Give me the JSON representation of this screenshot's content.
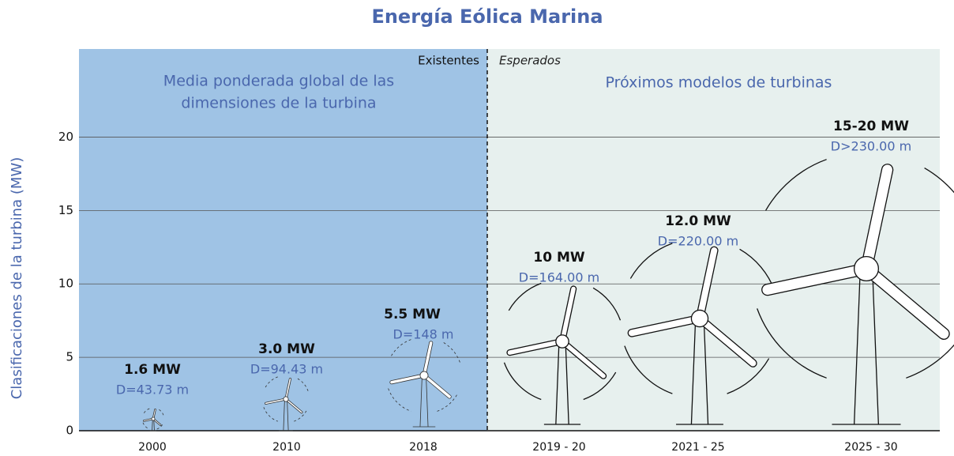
{
  "chart_data": {
    "type": "turbines",
    "title": "Energía Eólica Marina",
    "ylabel": "Clasificaciones de la turbina (MW)",
    "ylim": [
      0,
      26
    ],
    "yticks": [
      0,
      5,
      10,
      15,
      20
    ],
    "grid": true,
    "categories": [
      "2000",
      "2010",
      "2018",
      "2019 - 20",
      "2021 - 25",
      "2025 - 30"
    ],
    "ratings": [
      "1.6 MW",
      "3.0 MW",
      "5.5 MW",
      "10 MW",
      "12.0 MW",
      "15-20 MW"
    ],
    "diameters": [
      "D=43.73 m",
      "D=94.43 m",
      "D=148 m",
      "D=164.00 m",
      "D=220.00 m",
      "D>230.00 m"
    ],
    "existing_label": "Existentes",
    "expected_label": "Esperados",
    "existing_region": [
      "Media ponderada global de las",
      "dimensiones de la turbina"
    ],
    "expected_region": "Próximos modelos de turbinas",
    "existing_color": "#9fc3e5",
    "expected_color": "#e7f0ee"
  }
}
